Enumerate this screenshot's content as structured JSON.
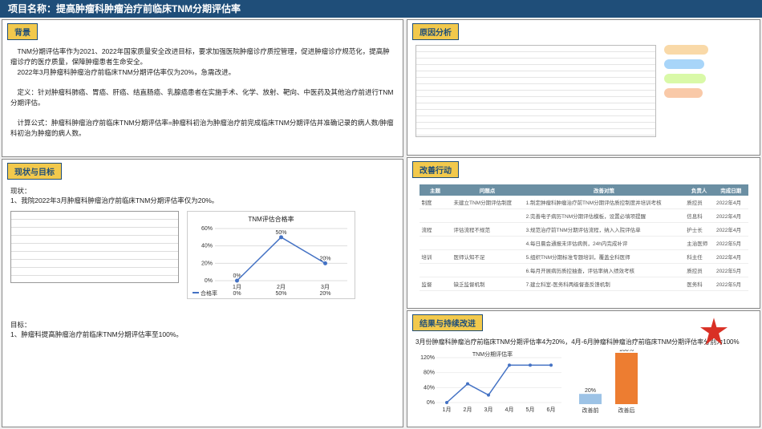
{
  "title": "项目名称：提高肿瘤科肿瘤治疗前临床TNM分期评估率",
  "background": {
    "header": "背景",
    "p1": "　TNM分期评估率作为2021、2022年国家质量安全改进目标，要求加强医院肿瘤诊疗质控管理，促进肿瘤诊疗规范化，提高肿瘤诊疗的医疗质量，保障肿瘤患者生命安全。",
    "p2": "　2022年3月肿瘤科肿瘤治疗前临床TNM分期评估率仅为20%，急需改进。",
    "p3": "　定义：针对肿瘤科肺癌、胃癌、肝癌、结直肠癌、乳腺癌患者在实施手术、化学、放射、靶向、中医药及其他治疗前进行TNM分期评估。",
    "p4": "　计算公式：肿瘤科肿瘤治疗前临床TNM分期评估率=肿瘤科初治为肿瘤治疗前完成临床TNM分期评估并准确记录的病人数/肿瘤科初治为肿瘤的病人数。"
  },
  "current": {
    "header": "现状与目标",
    "status_label": "现状：",
    "status_line": "1、我院2022年3月肿瘤科肿瘤治疗前临床TNM分期评估率仅为20%。",
    "goal_label": "目标：",
    "goal_line": "1、肿瘤科提高肿瘤治疗前临床TNM分期评估率至100%。",
    "chart": {
      "title": "TNM评估合格率",
      "series_name": "合格率",
      "categories": [
        "1月",
        "2月",
        "3月"
      ],
      "values": [
        0,
        50,
        20
      ],
      "yticks": [
        0,
        20,
        40,
        60
      ],
      "line_color": "#4472c4",
      "marker_color": "#4472c4"
    }
  },
  "cause": {
    "header": "原因分析"
  },
  "action": {
    "header": "改善行动",
    "cols": [
      "主题",
      "问题点",
      "改善对策",
      "负责人",
      "完成日期"
    ],
    "rows": [
      [
        "制度",
        "未建立TNM分期评估制度",
        "1.制定肿瘤科肿瘤治疗前TNM分期评估质控制度并培训考核",
        "质控员",
        "2022年4月"
      ],
      [
        "",
        "",
        "2.完善电子病历TNM分期评估模板，设置必填项提醒",
        "信息科",
        "2022年4月"
      ],
      [
        "流程",
        "评估流程不规范",
        "3.规范治疗前TNM分期评估流程，纳入入院评估单",
        "护士长",
        "2022年4月"
      ],
      [
        "",
        "",
        "4.每日晨会通报未评估病例，24h内完成补评",
        "主治医师",
        "2022年5月"
      ],
      [
        "培训",
        "医师认知不足",
        "5.组织TNM分期标准专题培训，覆盖全科医师",
        "科主任",
        "2022年4月"
      ],
      [
        "",
        "",
        "6.每月开展病历质控抽查，评估率纳入绩效考核",
        "质控员",
        "2022年5月"
      ],
      [
        "监督",
        "缺乏监督机制",
        "7.建立科室-医务科两级督查反馈机制",
        "医务科",
        "2022年5月"
      ]
    ]
  },
  "result": {
    "header": "结果与持续改进",
    "text": "3月份肿瘤科肿瘤治疗前临床TNM分期评估率4为20%，4月-6月肿瘤科肿瘤治疗前临床TNM分期评估率分别为100%",
    "line": {
      "title": "TNM分期评估率",
      "categories": [
        "1月",
        "2月",
        "3月",
        "4月",
        "5月",
        "6月"
      ],
      "values": [
        0,
        50,
        20,
        100,
        100,
        100
      ],
      "color": "#4472c4"
    },
    "bar": {
      "categories": [
        "改善前",
        "改善后"
      ],
      "values": [
        20,
        100
      ],
      "colors": [
        "#9dc3e6",
        "#ed7d31"
      ]
    }
  }
}
